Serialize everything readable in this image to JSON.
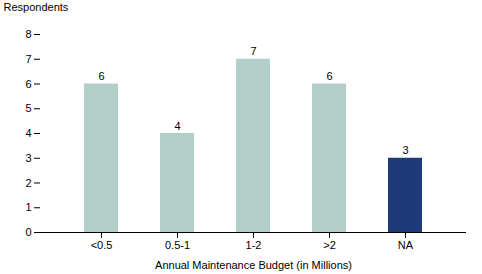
{
  "chart_data": {
    "type": "bar",
    "categories": [
      "<0.5",
      "0.5-1",
      "1-2",
      ">2",
      "NA"
    ],
    "values": [
      6,
      4,
      7,
      6,
      3
    ],
    "colors": [
      "#b2cfca",
      "#b2cfca",
      "#b2cfca",
      "#b2cfca",
      "#1e3a78"
    ],
    "xlabel": "Annual Maintenance Budget (in Millions)",
    "ylabel": "Respondents",
    "ylim": [
      0,
      8
    ],
    "yticks": [
      0,
      1,
      2,
      3,
      4,
      5,
      6,
      7,
      8
    ],
    "data_labels": true,
    "grid": false
  }
}
